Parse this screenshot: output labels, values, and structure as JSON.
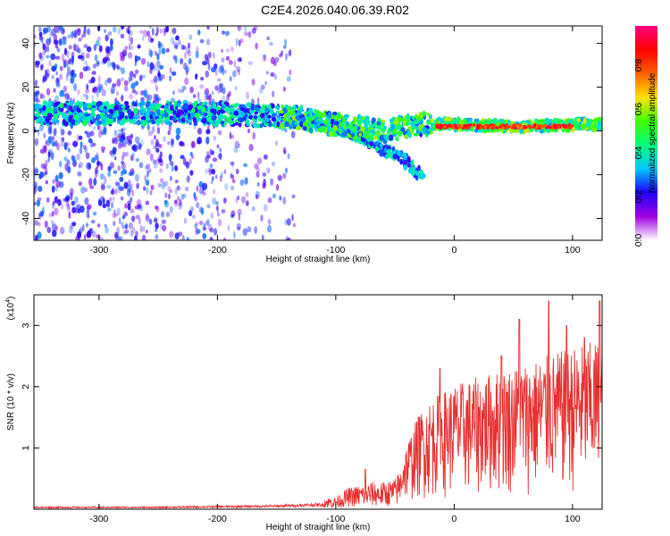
{
  "title": "C2E4.2026.040.06.39.R02",
  "chart_data": [
    {
      "type": "heatmap",
      "panel": "spectrogram",
      "xlabel": "Height of straight line (km)",
      "ylabel": "Frequency (Hz)",
      "xlim": [
        -355,
        125
      ],
      "ylim": [
        -50,
        48
      ],
      "xticks": [
        -300,
        -200,
        -100,
        0,
        100
      ],
      "yticks": [
        -40,
        -20,
        0,
        20,
        40
      ],
      "colorbar": {
        "label": "Normalized spectral amplitude",
        "range": [
          0,
          0.98
        ],
        "ticks": [
          "0.0",
          "0.2",
          "0.4",
          "0.6",
          "0.8"
        ],
        "tick_values": [
          0.0,
          0.2,
          0.4,
          0.6,
          0.8
        ],
        "colormap": [
          "#ffffff",
          "#a000e0",
          "#2000ff",
          "#00c8ff",
          "#00ff80",
          "#40ff00",
          "#ffe000",
          "#ff6000",
          "#ff0000",
          "#ff0080"
        ]
      },
      "features": {
        "band_center_hz": [
          [
            -355,
            8
          ],
          [
            -250,
            8
          ],
          [
            -150,
            7
          ],
          [
            -110,
            4
          ],
          [
            -80,
            -2
          ],
          [
            -60,
            -8
          ],
          [
            -40,
            -14
          ],
          [
            -25,
            -22
          ]
        ],
        "main_band": [
          [
            -355,
            8
          ],
          [
            -200,
            8
          ],
          [
            -130,
            6
          ],
          [
            -100,
            3
          ],
          [
            -60,
            0
          ],
          [
            -30,
            3
          ],
          [
            0,
            3
          ],
          [
            50,
            2
          ],
          [
            100,
            3
          ],
          [
            125,
            3
          ]
        ],
        "peak_segment_x": [
          -15,
          100
        ],
        "peak_segment_hz": 2
      }
    },
    {
      "type": "line",
      "panel": "snr",
      "xlabel": "Height of straight line (km)",
      "ylabel": "SNR (10 * v/v)",
      "scale_label": "(x10",
      "scale_exp": "4",
      "scale_close": ")",
      "xlim": [
        -355,
        125
      ],
      "ylim": [
        0,
        3.5
      ],
      "xticks": [
        -300,
        -200,
        -100,
        0,
        100
      ],
      "yticks": [
        1,
        2,
        3
      ],
      "color": "#e83030",
      "series": [
        {
          "name": "baseline",
          "x": [
            -355,
            -300,
            -250,
            -200,
            -150,
            -120
          ],
          "y": [
            0.03,
            0.03,
            0.03,
            0.04,
            0.05,
            0.07
          ]
        },
        {
          "name": "envelope",
          "x": [
            -100,
            -90,
            -80,
            -70,
            -60,
            -50,
            -40,
            -30,
            -20,
            -10,
            0,
            20,
            40,
            60,
            80,
            100,
            120
          ],
          "y": [
            0.2,
            0.35,
            0.4,
            0.45,
            0.45,
            0.5,
            0.9,
            1.3,
            1.5,
            1.6,
            1.7,
            1.8,
            1.9,
            2.0,
            2.1,
            2.2,
            2.3
          ]
        }
      ],
      "peaks": [
        [
          -75,
          0.65
        ],
        [
          -30,
          1.5
        ],
        [
          -12,
          2.3
        ],
        [
          40,
          2.5
        ],
        [
          55,
          3.1
        ],
        [
          80,
          3.4
        ],
        [
          95,
          3.0
        ],
        [
          110,
          2.8
        ],
        [
          123,
          3.4
        ]
      ]
    }
  ]
}
